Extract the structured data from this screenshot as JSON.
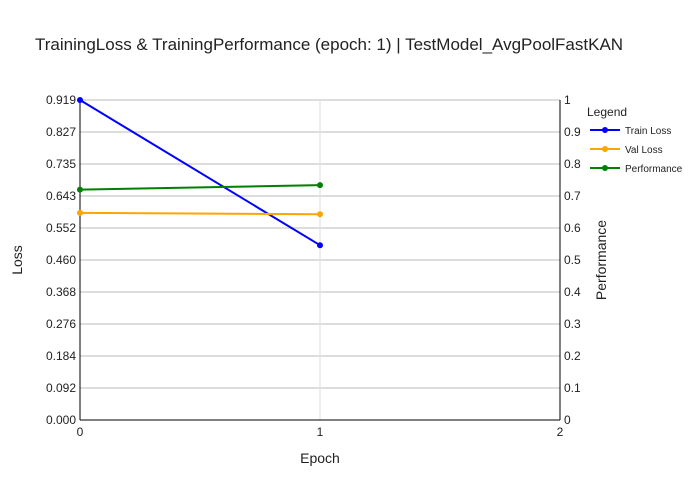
{
  "chart_data": {
    "type": "line",
    "title": "TrainingLoss & TrainingPerformance (epoch: 1) | TestModel_AvgPoolFastKAN",
    "xlabel": "Epoch",
    "ylabel": "Loss",
    "y2label": "Performance",
    "xlim": [
      0,
      2
    ],
    "ylim": [
      0,
      0.919
    ],
    "y2lim": [
      0,
      1
    ],
    "x_ticks": [
      "0",
      "1",
      "2"
    ],
    "y_ticks": [
      "0.000",
      "0.092",
      "0.184",
      "0.276",
      "0.368",
      "0.460",
      "0.552",
      "0.643",
      "0.735",
      "0.827",
      "0.919"
    ],
    "y2_ticks": [
      "0",
      "0.1",
      "0.2",
      "0.3",
      "0.4",
      "0.5",
      "0.6",
      "0.7",
      "0.8",
      "0.9",
      "1"
    ],
    "legend_title": "Legend",
    "legend_position": "right",
    "grid": true,
    "series": [
      {
        "name": "Train Loss",
        "axis": "left",
        "color": "#0000ff",
        "x": [
          0,
          1
        ],
        "values": [
          0.919,
          0.502
        ]
      },
      {
        "name": "Val Loss",
        "axis": "left",
        "color": "#ffa500",
        "x": [
          0,
          1
        ],
        "values": [
          0.595,
          0.591
        ]
      },
      {
        "name": "Performance",
        "axis": "right",
        "color": "#008000",
        "x": [
          0,
          1
        ],
        "values": [
          0.72,
          0.734
        ]
      }
    ]
  }
}
